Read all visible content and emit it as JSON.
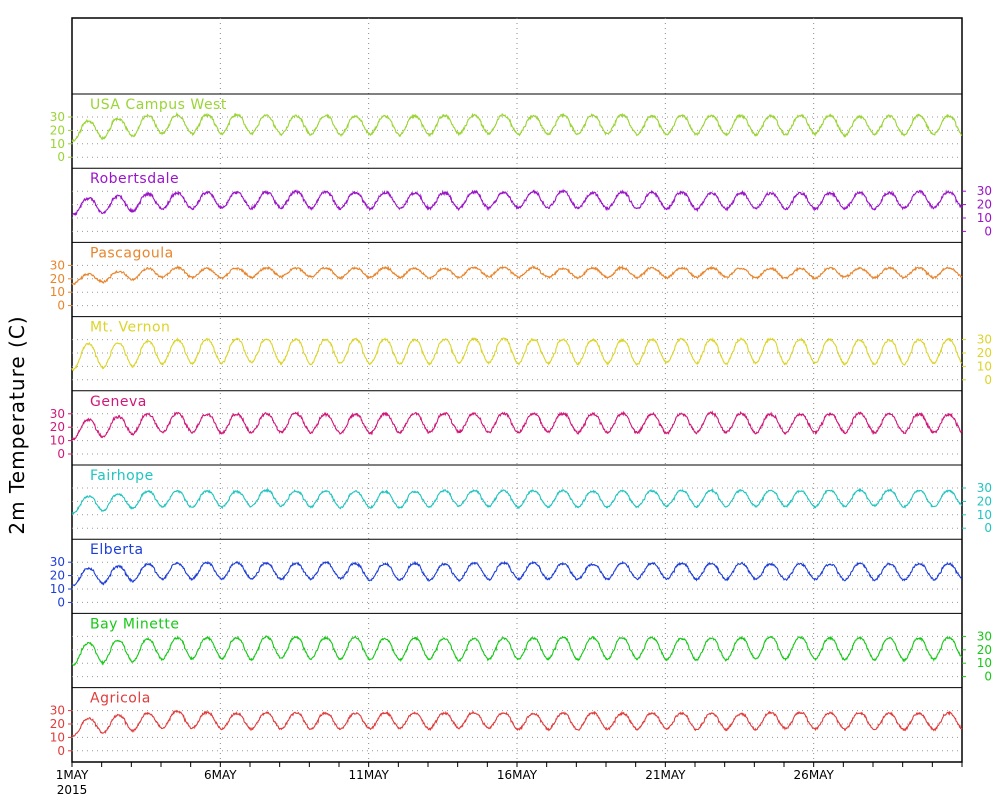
{
  "chart_data": {
    "type": "line",
    "ylabel": "2m Temperature (C)",
    "x_tick_labels": [
      "1MAY",
      "6MAY",
      "11MAY",
      "16MAY",
      "21MAY",
      "26MAY"
    ],
    "x_year_label": "2015",
    "x_range_days": [
      1,
      31
    ],
    "ylim": [
      -5,
      35
    ],
    "y_ticks": [
      0,
      10,
      20,
      30
    ],
    "grid": true,
    "series": [
      {
        "name": "USA Campus West",
        "color": "#9ad435",
        "axis_side": "left",
        "seed": 11,
        "baseline": 24,
        "amplitude": 7,
        "noise": 1.6
      },
      {
        "name": "Robertsdale",
        "color": "#9a14c8",
        "axis_side": "right",
        "seed": 23,
        "baseline": 23,
        "amplitude": 6,
        "noise": 1.8
      },
      {
        "name": "Pascagoula",
        "color": "#e8852c",
        "axis_side": "left",
        "seed": 37,
        "baseline": 24.5,
        "amplitude": 3.5,
        "noise": 1.4
      },
      {
        "name": "Mt. Vernon",
        "color": "#dcd42a",
        "axis_side": "right",
        "seed": 41,
        "baseline": 21,
        "amplitude": 9,
        "noise": 1.4
      },
      {
        "name": "Geneva",
        "color": "#d01878",
        "axis_side": "left",
        "seed": 53,
        "baseline": 23,
        "amplitude": 7,
        "noise": 1.8
      },
      {
        "name": "Fairhope",
        "color": "#22c4c0",
        "axis_side": "right",
        "seed": 67,
        "baseline": 22,
        "amplitude": 6,
        "noise": 1.2
      },
      {
        "name": "Elberta",
        "color": "#1e3ed8",
        "axis_side": "left",
        "seed": 71,
        "baseline": 23,
        "amplitude": 6,
        "noise": 1.4
      },
      {
        "name": "Bay Minette",
        "color": "#18c818",
        "axis_side": "right",
        "seed": 83,
        "baseline": 21,
        "amplitude": 8,
        "noise": 1.3
      },
      {
        "name": "Agricola",
        "color": "#e03c3c",
        "axis_side": "left",
        "seed": 97,
        "baseline": 22,
        "amplitude": 6,
        "noise": 1.4
      }
    ]
  }
}
